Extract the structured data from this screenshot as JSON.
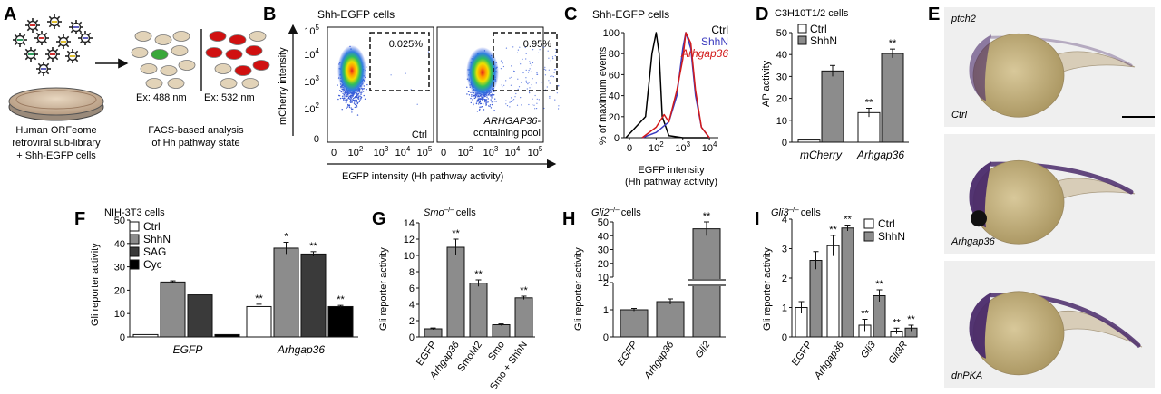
{
  "colors": {
    "ctrl": "#ffffff",
    "shhn": "#8c8c8c",
    "sag": "#3a3a3a",
    "cyc": "#000000",
    "hist_ctrl": "#000000",
    "hist_shhn": "#3b3bbf",
    "hist_arhgap36": "#d21b1b",
    "ex532": "#d01010",
    "ex488_pos": "#3aa83a",
    "embryo_stain": "#4a2a6a"
  },
  "panels": {
    "A": {
      "label": "A",
      "library_line1": "Human ORFeome",
      "library_line2": "retroviral sub-library",
      "library_line3": "+ Shh-EGFP cells",
      "ex488": "Ex: 488 nm",
      "ex532": "Ex: 532 nm",
      "facs_line1": "FACS-based analysis",
      "facs_line2": "of Hh pathway state"
    },
    "B": {
      "label": "B",
      "title": "Shh-EGFP cells",
      "ylabel": "mCherry intensity",
      "xlabel": "EGFP intensity (Hh pathway activity)",
      "left_gate": "0.025%",
      "right_gate": "0.95%",
      "left_caption": "Ctrl",
      "right_caption1": "ARHGAP36-",
      "right_caption2": "containing pool",
      "yticks": [
        {
          "base": "0",
          "exp": ""
        },
        {
          "base": "10",
          "exp": "2"
        },
        {
          "base": "10",
          "exp": "3"
        },
        {
          "base": "10",
          "exp": "4"
        },
        {
          "base": "10",
          "exp": "5"
        }
      ],
      "xticks": [
        {
          "base": "0",
          "exp": ""
        },
        {
          "base": "10",
          "exp": "2"
        },
        {
          "base": "10",
          "exp": "3"
        },
        {
          "base": "10",
          "exp": "4"
        },
        {
          "base": "10",
          "exp": "5"
        }
      ]
    },
    "C": {
      "label": "C",
      "title": "Shh-EGFP cells",
      "ylabel": "% of maximum events",
      "xlabel1": "EGFP intensity",
      "xlabel2": "(Hh pathway activity)",
      "legend": [
        "Ctrl",
        "ShhN",
        "Arhgap36"
      ],
      "yticks": [
        "0",
        "20",
        "40",
        "60",
        "80",
        "100"
      ],
      "xticks": [
        {
          "base": "0",
          "exp": ""
        },
        {
          "base": "10",
          "exp": "2"
        },
        {
          "base": "10",
          "exp": "3"
        },
        {
          "base": "10",
          "exp": "4"
        }
      ]
    },
    "D": {
      "label": "D",
      "title": "C3H10T1/2 cells",
      "ylabel": "AP activity",
      "legend": [
        "Ctrl",
        "ShhN"
      ],
      "stars_label": "**"
    },
    "E": {
      "label": "E",
      "images": [
        {
          "top": "ptch2",
          "bottom": "Ctrl"
        },
        {
          "top": "",
          "bottom": "Arhgap36"
        },
        {
          "top": "",
          "bottom": "dnPKA"
        }
      ]
    },
    "F": {
      "label": "F",
      "title": "NIH-3T3 cells",
      "ylabel": "Gli reporter activity",
      "legend": [
        "Ctrl",
        "ShhN",
        "SAG",
        "Cyc"
      ]
    },
    "G": {
      "label": "G",
      "title_italic": "Smo",
      "title_sup": "–/–",
      "title_rest": "cells",
      "ylabel": "Gli reporter activity"
    },
    "H": {
      "label": "H",
      "title_italic": "Gli2",
      "title_sup": "–/–",
      "title_rest": "cells",
      "ylabel": "Gli reporter activity"
    },
    "I": {
      "label": "I",
      "title_italic": "Gli3",
      "title_sup": "–/–",
      "title_rest": "cells",
      "ylabel": "Gli reporter activity",
      "legend": [
        "Ctrl",
        "ShhN"
      ]
    }
  },
  "chart_data": [
    {
      "panel": "C",
      "type": "line",
      "title": "Shh-EGFP cells",
      "xlabel": "EGFP intensity (Hh pathway activity)",
      "ylabel": "% of maximum events",
      "xscale": "log",
      "ylim": [
        0,
        100
      ],
      "series": [
        {
          "name": "Ctrl",
          "x": [
            0,
            40,
            70,
            100,
            130,
            170,
            300,
            1000,
            10000
          ],
          "y": [
            0,
            20,
            80,
            100,
            80,
            20,
            2,
            0,
            0
          ]
        },
        {
          "name": "ShhN",
          "x": [
            30,
            100,
            300,
            600,
            1000,
            1300,
            2000,
            3000,
            5000,
            10000
          ],
          "y": [
            0,
            5,
            15,
            40,
            85,
            100,
            85,
            40,
            10,
            0
          ]
        },
        {
          "name": "Arhgap36",
          "x": [
            30,
            100,
            200,
            300,
            600,
            1000,
            1300,
            2000,
            3000,
            5000,
            10000
          ],
          "y": [
            0,
            10,
            22,
            15,
            45,
            75,
            100,
            90,
            45,
            10,
            0
          ]
        }
      ]
    },
    {
      "panel": "D",
      "type": "bar",
      "title": "C3H10T1/2 cells",
      "ylabel": "AP activity",
      "categories": [
        "mCherry",
        "Arhgap36"
      ],
      "series": [
        {
          "name": "Ctrl",
          "values": [
            1,
            13.5
          ],
          "errors": [
            0,
            2
          ]
        },
        {
          "name": "ShhN",
          "values": [
            32.5,
            40.5
          ],
          "errors": [
            2.5,
            2
          ]
        }
      ],
      "ylim": [
        0,
        50
      ],
      "yticks": [
        0,
        10,
        20,
        30,
        40,
        50
      ],
      "significance": [
        [
          "",
          "**"
        ],
        [
          "",
          "**"
        ]
      ]
    },
    {
      "panel": "F",
      "type": "bar",
      "title": "NIH-3T3 cells",
      "ylabel": "Gli reporter activity",
      "categories": [
        "EGFP",
        "Arhgap36"
      ],
      "series": [
        {
          "name": "Ctrl",
          "values": [
            1,
            13
          ],
          "errors": [
            0,
            1
          ]
        },
        {
          "name": "ShhN",
          "values": [
            23.5,
            38
          ],
          "errors": [
            0.5,
            2.5
          ]
        },
        {
          "name": "SAG",
          "values": [
            18,
            35.5
          ],
          "errors": [
            0,
            1
          ]
        },
        {
          "name": "Cyc",
          "values": [
            1,
            13
          ],
          "errors": [
            0,
            0.5
          ]
        }
      ],
      "ylim": [
        0,
        50
      ],
      "yticks": [
        0,
        10,
        20,
        30,
        40,
        50
      ],
      "significance": [
        [
          "",
          "**"
        ],
        [
          "",
          "*"
        ],
        [
          "",
          "**"
        ],
        [
          "",
          "**"
        ]
      ]
    },
    {
      "panel": "G",
      "type": "bar",
      "ylabel": "Gli reporter activity",
      "categories": [
        "EGFP",
        "Arhgap36",
        "SmoM2",
        "Smo",
        "Smo + ShhN"
      ],
      "values": [
        1,
        11,
        6.6,
        1.5,
        4.8
      ],
      "errors": [
        0.1,
        1,
        0.4,
        0.1,
        0.2
      ],
      "ylim": [
        0,
        14
      ],
      "yticks": [
        0,
        2,
        4,
        6,
        8,
        10,
        12,
        14
      ],
      "significance": [
        "",
        "**",
        "**",
        "",
        "**"
      ]
    },
    {
      "panel": "H",
      "type": "bar",
      "ylabel": "Gli reporter activity",
      "categories": [
        "EGFP",
        "Arhgap36",
        "Gli2"
      ],
      "values": [
        1,
        1.3,
        45
      ],
      "errors": [
        0.05,
        0.1,
        5
      ],
      "axis_break": true,
      "yticks_lower": [
        0,
        1,
        2
      ],
      "yticks_upper": [
        10,
        20,
        30,
        40,
        50
      ],
      "significance": [
        "",
        "",
        "**"
      ]
    },
    {
      "panel": "I",
      "type": "bar",
      "ylabel": "Gli reporter activity",
      "categories": [
        "EGFP",
        "Arhgap36",
        "Gli3",
        "Gli3R"
      ],
      "series": [
        {
          "name": "Ctrl",
          "values": [
            1,
            3.1,
            0.4,
            0.2
          ],
          "errors": [
            0.2,
            0.35,
            0.2,
            0.1
          ]
        },
        {
          "name": "ShhN",
          "values": [
            2.6,
            3.7,
            1.4,
            0.3
          ],
          "errors": [
            0.3,
            0.1,
            0.2,
            0.1
          ]
        }
      ],
      "ylim": [
        0,
        4
      ],
      "yticks": [
        0,
        1,
        2,
        3,
        4
      ],
      "significance": [
        [
          "",
          "**",
          "**",
          "**"
        ],
        [
          "",
          "**",
          "**",
          "**"
        ]
      ]
    }
  ]
}
